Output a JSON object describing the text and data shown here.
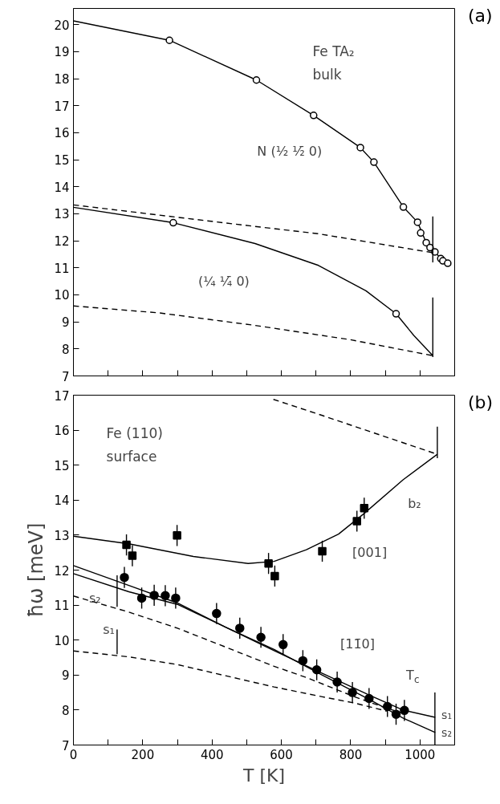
{
  "chart_data": [
    {
      "type": "line",
      "xlim": [
        0,
        1100
      ],
      "ylim": [
        7,
        20.6
      ],
      "tick_labels": "y",
      "xticks": [
        {
          "value": 0,
          "label": null
        },
        {
          "value": 100,
          "label": null
        },
        {
          "value": 200,
          "label": null
        },
        {
          "value": 300,
          "label": null
        },
        {
          "value": 400,
          "label": null
        },
        {
          "value": 500,
          "label": null
        },
        {
          "value": 600,
          "label": null
        },
        {
          "value": 700,
          "label": null
        },
        {
          "value": 800,
          "label": null
        },
        {
          "value": 900,
          "label": null
        },
        {
          "value": 1000,
          "label": null
        }
      ],
      "yticks": [
        7,
        8,
        9,
        10,
        11,
        12,
        13,
        14,
        15,
        16,
        17,
        18,
        19,
        20
      ],
      "annotations": [
        "(a)",
        "Fe  TA₂",
        "bulk",
        "N (½ ½̄ 0)",
        "(¼ ¼̄ 0)"
      ],
      "series": [
        {
          "color": "#000000",
          "line_style": "solid",
          "x": [
            0,
            277,
            528,
            693,
            828,
            867,
            952,
            993,
            1018,
            1043,
            1066,
            1090
          ],
          "values": [
            20.14,
            19.42,
            17.95,
            16.64,
            15.45,
            14.91,
            13.25,
            12.69,
            11.93,
            11.59,
            11.26,
            11.1
          ]
        },
        {
          "type": "scatter",
          "color": "#000000",
          "marker": "circle",
          "x": [
            277,
            528,
            693,
            828,
            867,
            952,
            993,
            1002,
            1018,
            1029,
            1043,
            1060,
            1066,
            1080
          ],
          "values": [
            19.42,
            17.95,
            16.64,
            15.45,
            14.91,
            13.25,
            12.69,
            12.29,
            11.93,
            11.75,
            11.59,
            11.34,
            11.26,
            11.17
          ]
        },
        {
          "color": "#000000",
          "line_style": "solid",
          "x": [
            0,
            288,
            524,
            707,
            844,
            931,
            982,
            1037
          ],
          "values": [
            13.24,
            12.67,
            11.9,
            11.09,
            10.15,
            9.3,
            8.5,
            7.75
          ]
        },
        {
          "type": "scatter",
          "color": "#000000",
          "marker": "circle",
          "x": [
            288,
            931
          ],
          "values": [
            12.67,
            9.3
          ]
        },
        {
          "color": "#000000",
          "line_style": "dashed",
          "x": [
            0,
            432,
            707,
            1037
          ],
          "values": [
            13.33,
            12.67,
            12.26,
            11.56
          ]
        },
        {
          "color": "#000000",
          "line_style": "dashed",
          "x": [
            0,
            249,
            524,
            799,
            1037
          ],
          "values": [
            9.59,
            9.33,
            8.87,
            8.34,
            7.75
          ]
        },
        {
          "color": "#000000",
          "line_style": "solid",
          "x": [
            1037,
            1037
          ],
          "values": [
            11.2,
            12.9
          ]
        },
        {
          "color": "#000000",
          "line_style": "solid",
          "x": [
            1037,
            1037
          ],
          "values": [
            7.7,
            9.9
          ]
        }
      ]
    },
    {
      "type": "line",
      "xlim": [
        0,
        1100
      ],
      "ylim": [
        7,
        17
      ],
      "xlabel": "T [K]",
      "ylabel": "ħω [meV]",
      "xticks": [
        0,
        {
          "value": 100,
          "label": null
        },
        200,
        {
          "value": 300,
          "label": null
        },
        400,
        {
          "value": 500,
          "label": null
        },
        600,
        {
          "value": 700,
          "label": null
        },
        800,
        {
          "value": 900,
          "label": null
        },
        1000
      ],
      "yticks": [
        7,
        8,
        9,
        10,
        11,
        12,
        13,
        14,
        15,
        16,
        17
      ],
      "annotations": [
        "(b)",
        "Fe (110)",
        "surface",
        "b₂",
        "[001]",
        "[11̄0]",
        "s₂",
        "s₁",
        "T$_{c}$",
        "s₁",
        "s₂"
      ],
      "series": [
        {
          "color": "#000000",
          "line_style": "solid",
          "x": [
            0,
            160,
            346,
            504,
            579,
            672,
            765,
            839,
            951,
            1050
          ],
          "values": [
            12.97,
            12.75,
            12.39,
            12.19,
            12.25,
            12.58,
            13.03,
            13.62,
            14.58,
            15.31
          ]
        },
        {
          "color": "#000000",
          "line_style": "dashed",
          "x": [
            577,
            718,
            1050
          ],
          "values": [
            16.88,
            16.42,
            15.31
          ]
        },
        {
          "color": "#000000",
          "line_style": "solid",
          "x": [
            1050,
            1050
          ],
          "values": [
            15.2,
            16.1
          ]
        },
        {
          "type": "scatter",
          "color": "#000000",
          "marker": "square",
          "x": [
            153,
            170,
            299,
            563,
            581,
            718,
            818,
            839
          ],
          "values": [
            12.72,
            12.41,
            12.99,
            12.19,
            11.83,
            12.54,
            13.4,
            13.77
          ],
          "errors": [
            0.3,
            0.3,
            0.3,
            0.3,
            0.3,
            0.3,
            0.3,
            0.3
          ]
        },
        {
          "color": "#000000",
          "line_style": "solid",
          "x": [
            0,
            160,
            300,
            439,
            579,
            718,
            858,
            951,
            1044
          ],
          "values": [
            12.13,
            11.56,
            11.06,
            10.37,
            9.73,
            9.0,
            8.28,
            7.77,
            7.36
          ]
        },
        {
          "color": "#000000",
          "line_style": "solid",
          "x": [
            0,
            160,
            300,
            439,
            579,
            718,
            858,
            951,
            1044
          ],
          "values": [
            11.9,
            11.38,
            11.02,
            10.37,
            9.7,
            9.05,
            8.41,
            8.0,
            7.79
          ]
        },
        {
          "color": "#000000",
          "line_style": "dashed",
          "x": [
            0,
            160,
            300,
            439,
            579,
            672,
            811,
            904,
            951
          ],
          "values": [
            11.26,
            10.8,
            10.34,
            9.8,
            9.25,
            8.93,
            8.38,
            8.05,
            7.91
          ]
        },
        {
          "color": "#000000",
          "line_style": "dashed",
          "x": [
            0,
            160,
            300,
            439,
            579,
            718,
            811,
            904
          ],
          "values": [
            9.69,
            9.52,
            9.3,
            8.98,
            8.66,
            8.38,
            8.2,
            7.97
          ]
        },
        {
          "type": "scatter",
          "color": "#000000",
          "marker": "circle",
          "x": [
            147,
            197,
            233,
            265,
            295,
            413,
            480,
            541,
            605,
            662,
            702,
            761,
            805,
            853,
            906,
            931,
            955
          ],
          "values": [
            11.79,
            11.2,
            11.28,
            11.27,
            11.2,
            10.76,
            10.34,
            10.08,
            9.87,
            9.41,
            9.15,
            8.8,
            8.5,
            8.33,
            8.1,
            7.88,
            7.99
          ],
          "errors": [
            0.3,
            0.3,
            0.3,
            0.3,
            0.3,
            0.3,
            0.3,
            0.3,
            0.3,
            0.3,
            0.3,
            0.3,
            0.3,
            0.3,
            0.3,
            0.3,
            0.3
          ]
        },
        {
          "color": "#000000",
          "line_style": "solid",
          "x": [
            126,
            126
          ],
          "values": [
            9.6,
            10.3
          ]
        },
        {
          "color": "#000000",
          "line_style": "solid",
          "x": [
            126,
            126
          ],
          "values": [
            10.95,
            11.85
          ]
        },
        {
          "color": "#000000",
          "line_style": "solid",
          "x": [
            1043,
            1043
          ],
          "values": [
            7.0,
            8.5
          ]
        }
      ]
    }
  ]
}
